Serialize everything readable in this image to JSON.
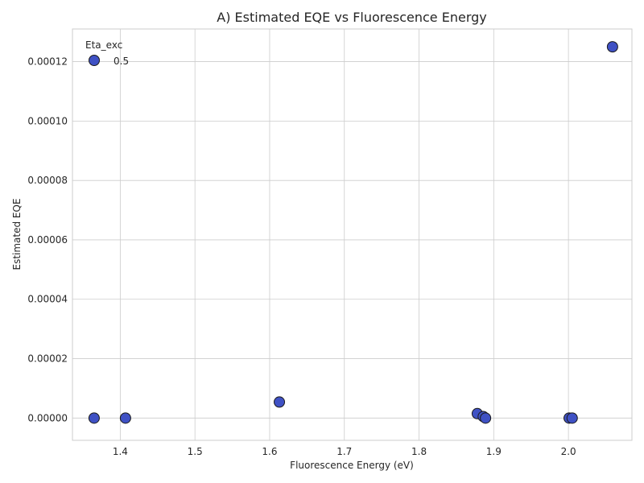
{
  "chart_data": {
    "type": "scatter",
    "title": "A) Estimated EQE vs Fluorescence Energy",
    "xlabel": "Fluorescence Energy (eV)",
    "ylabel": "Estimated EQE",
    "xlim": [
      1.336,
      2.085
    ],
    "ylim": [
      -7.5e-06,
      0.000131
    ],
    "xticks": [
      1.4,
      1.5,
      1.6,
      1.7,
      1.8,
      1.9,
      2.0
    ],
    "xtick_labels": [
      "1.4",
      "1.5",
      "1.6",
      "1.7",
      "1.8",
      "1.9",
      "2.0"
    ],
    "yticks": [
      0,
      2e-05,
      4e-05,
      6e-05,
      8e-05,
      0.0001,
      0.00012
    ],
    "ytick_labels": [
      "0.00000",
      "0.00002",
      "0.00004",
      "0.00006",
      "0.00008",
      "0.00010",
      "0.00012"
    ],
    "grid": true,
    "legend": {
      "title": "Eta_exc",
      "placement": "top-left",
      "entries": [
        {
          "label": "0.5"
        }
      ]
    },
    "series": [
      {
        "name": "0.5",
        "color": "#3f51c4",
        "edgecolor": "#1a1a1a",
        "points": [
          {
            "x": 1.365,
            "y": 0.0
          },
          {
            "x": 1.407,
            "y": 0.0
          },
          {
            "x": 1.613,
            "y": 5.4e-06
          },
          {
            "x": 1.878,
            "y": 1.5e-06
          },
          {
            "x": 1.886,
            "y": 5e-07
          },
          {
            "x": 1.889,
            "y": 0.0
          },
          {
            "x": 2.001,
            "y": 0.0
          },
          {
            "x": 2.005,
            "y": 0.0
          },
          {
            "x": 2.059,
            "y": 0.000125
          }
        ]
      }
    ]
  }
}
